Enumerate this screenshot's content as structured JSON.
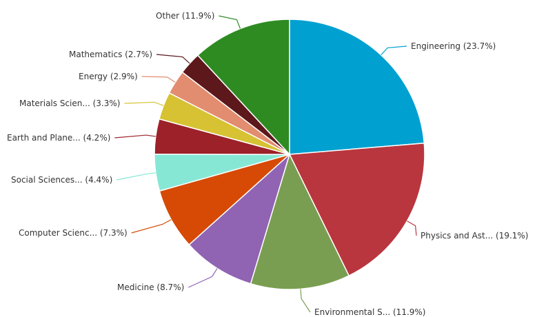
{
  "chart_data": {
    "type": "pie",
    "title": "",
    "start_angle_deg": 0,
    "direction": "clockwise",
    "slices": [
      {
        "label": "Engineering (23.7%)",
        "value": 23.7,
        "color": "#00a0d0"
      },
      {
        "label": "Physics and Ast... (19.1%)",
        "value": 19.1,
        "color": "#b9363e"
      },
      {
        "label": "Environmental S... (11.9%)",
        "value": 11.9,
        "color": "#7a9e51"
      },
      {
        "label": "Medicine (8.7%)",
        "value": 8.7,
        "color": "#9063b3"
      },
      {
        "label": "Computer Scienc... (7.3%)",
        "value": 7.3,
        "color": "#d64a05"
      },
      {
        "label": "Social Sciences... (4.4%)",
        "value": 4.4,
        "color": "#87e7d5"
      },
      {
        "label": "Earth and Plane... (4.2%)",
        "value": 4.2,
        "color": "#9c2129"
      },
      {
        "label": "Materials Scien... (3.3%)",
        "value": 3.3,
        "color": "#d6c233"
      },
      {
        "label": "Energy (2.9%)",
        "value": 2.9,
        "color": "#e28d6f"
      },
      {
        "label": "Mathematics (2.7%)",
        "value": 2.7,
        "color": "#5c181b"
      },
      {
        "label": "Other (11.9%)",
        "value": 11.9,
        "color": "#2e8b22"
      }
    ]
  }
}
